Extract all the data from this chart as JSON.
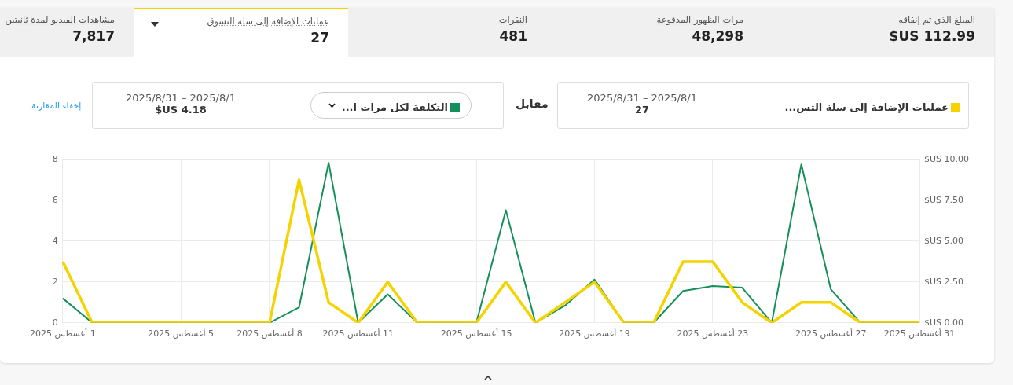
{
  "chart_data": [
    {
      "type": "other",
      "annotations": [
        "المبلغ الذي تم إنفاقه",
        "112.99 US$",
        "مرات الظهور المدفوعة",
        "48,298",
        "النقرات",
        "481",
        "عمليات الإضافة إلى سلة التسوق",
        "27",
        "مشاهدات الفيديو لمدة ثانيتين",
        "7,817"
      ]
    },
    {
      "type": "line",
      "categories": [
        "1 أغسطس 2025",
        null,
        null,
        null,
        "5 أغسطس 2025",
        null,
        null,
        "8 أغسطس 2025",
        null,
        null,
        "11 أغسطس 2025",
        null,
        null,
        null,
        "15 أغسطس 2025",
        null,
        null,
        null,
        "19 أغسطس 2025",
        null,
        null,
        null,
        "23 أغسطس 2025",
        null,
        null,
        null,
        "27 أغسطس 2025",
        null,
        null,
        "31 أغسطس 2025"
      ],
      "series": [
        {
          "name": "عمليات الإضافة إلى سلة التس...",
          "color": "#f5d300",
          "values": [
            3,
            0,
            0,
            0,
            0,
            0,
            0,
            0,
            7,
            1,
            0,
            2,
            0,
            0,
            0,
            2,
            0,
            1,
            2,
            0,
            0,
            3,
            3,
            1,
            0,
            1,
            1,
            0,
            0,
            0
          ]
        },
        {
          "name": "التكلفة لكل مرات ا...",
          "color": "#16905a",
          "axis": "y2",
          "values": [
            1.5,
            0,
            0,
            0,
            0,
            0,
            0,
            0,
            0.95,
            9.8,
            0,
            1.75,
            0,
            0,
            0,
            6.9,
            0,
            1.05,
            2.65,
            0,
            0,
            1.95,
            2.25,
            2.15,
            0,
            9.7,
            2.05,
            0,
            0,
            0
          ]
        }
      ],
      "ylim": [
        0,
        8
      ],
      "yticks": [
        0,
        2,
        4,
        6,
        8
      ],
      "y2lim": [
        0,
        10
      ],
      "y2ticks": [
        {
          "value": 0,
          "label": "0.00 US$"
        },
        {
          "value": 2.5,
          "label": "2.50 US$"
        },
        {
          "value": 5,
          "label": "5.00 US$"
        },
        {
          "value": 7.5,
          "label": "7.50 US$"
        },
        {
          "value": 10,
          "label": "10.00 US$"
        }
      ],
      "grid": true,
      "legend": "top",
      "annotations": [
        "2025/8/1 – 2025/8/31",
        "27",
        "مقابل",
        "2025/8/1 – 2025/8/31",
        "4.18 US$",
        "إخفاء المقارنة"
      ]
    }
  ]
}
